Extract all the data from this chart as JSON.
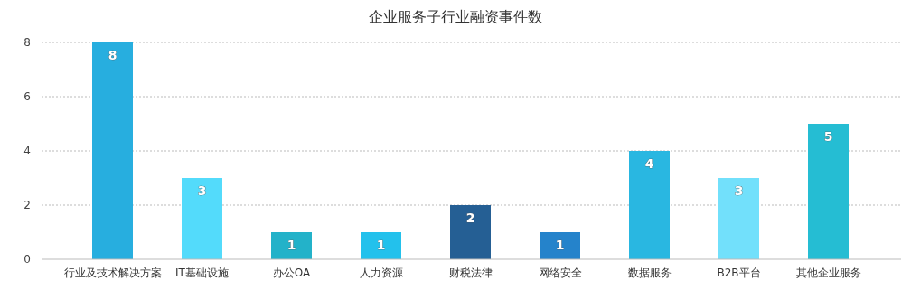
{
  "chart_data": {
    "type": "bar",
    "title": "企业服务子行业融资事件数",
    "categories": [
      "行业及技术解决方案",
      "IT基础设施",
      "办公OA",
      "人力资源",
      "财税法律",
      "网络安全",
      "数据服务",
      "B2B平台",
      "其他企业服务"
    ],
    "values": [
      8,
      3,
      1,
      1,
      2,
      1,
      4,
      3,
      5
    ],
    "colors": [
      "#27aedf",
      "#53dbfb",
      "#23b2c9",
      "#23c1ec",
      "#255f94",
      "#2583cb",
      "#29b7e1",
      "#72e0fb",
      "#25bdd3"
    ],
    "ylim": [
      0,
      8
    ],
    "yticks": [
      0,
      2,
      4,
      6,
      8
    ],
    "grid": "y",
    "data_labels": true
  }
}
